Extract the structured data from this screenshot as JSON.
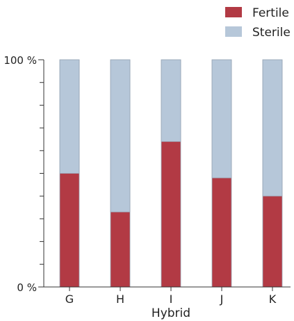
{
  "chart_data": {
    "type": "bar",
    "stacked": true,
    "categories": [
      "G",
      "H",
      "I",
      "J",
      "K"
    ],
    "series": [
      {
        "name": "Fertile",
        "values": [
          50,
          33,
          64,
          48,
          40
        ],
        "color": "#b23a44"
      },
      {
        "name": "Sterile",
        "values": [
          50,
          67,
          36,
          52,
          60
        ],
        "color": "#b6c7d9"
      }
    ],
    "xlabel": "Hybrid",
    "ylabel": "",
    "ylim": [
      0,
      100
    ],
    "y_tick_labels": [
      "0 %",
      "100 %"
    ],
    "legend": "top-right",
    "grid": false
  }
}
